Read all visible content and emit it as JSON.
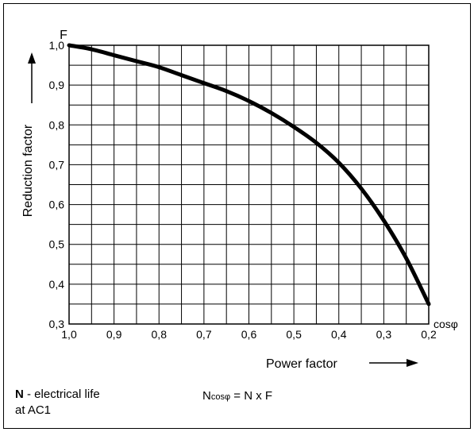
{
  "chart_data": {
    "type": "line",
    "y_symbol": "F",
    "ylabel": "Reduction factor",
    "xlabel": "Power factor",
    "x_unit_label": "cosφ",
    "x_ticks": [
      "1,0",
      "0,9",
      "0,8",
      "0,7",
      "0,6",
      "0,5",
      "0,4",
      "0,3",
      "0,2"
    ],
    "x_tick_values": [
      1.0,
      0.9,
      0.8,
      0.7,
      0.6,
      0.5,
      0.4,
      0.3,
      0.2
    ],
    "y_ticks": [
      "1,0",
      "0,9",
      "0,8",
      "0,7",
      "0,6",
      "0,5",
      "0,4",
      "0,3"
    ],
    "y_tick_values": [
      1.0,
      0.9,
      0.8,
      0.7,
      0.6,
      0.5,
      0.4,
      0.3
    ],
    "xlim": [
      1.0,
      0.2
    ],
    "ylim": [
      0.3,
      1.0
    ],
    "x_reversed": true,
    "grid": true,
    "series": [
      {
        "x": [
          1.0,
          0.95,
          0.9,
          0.85,
          0.8,
          0.75,
          0.7,
          0.65,
          0.6,
          0.55,
          0.5,
          0.45,
          0.4,
          0.35,
          0.3,
          0.25,
          0.2
        ],
        "y": [
          1.0,
          0.99,
          0.975,
          0.96,
          0.945,
          0.925,
          0.905,
          0.885,
          0.86,
          0.83,
          0.795,
          0.755,
          0.705,
          0.64,
          0.56,
          0.465,
          0.35
        ],
        "color": "#000000"
      }
    ]
  },
  "legend": {
    "n_symbol": "N",
    "n_text": " - electrical life",
    "n_text2": "at AC1",
    "formula_base": "N",
    "formula_sub": "cosφ",
    "formula_rest": " = N x F"
  }
}
